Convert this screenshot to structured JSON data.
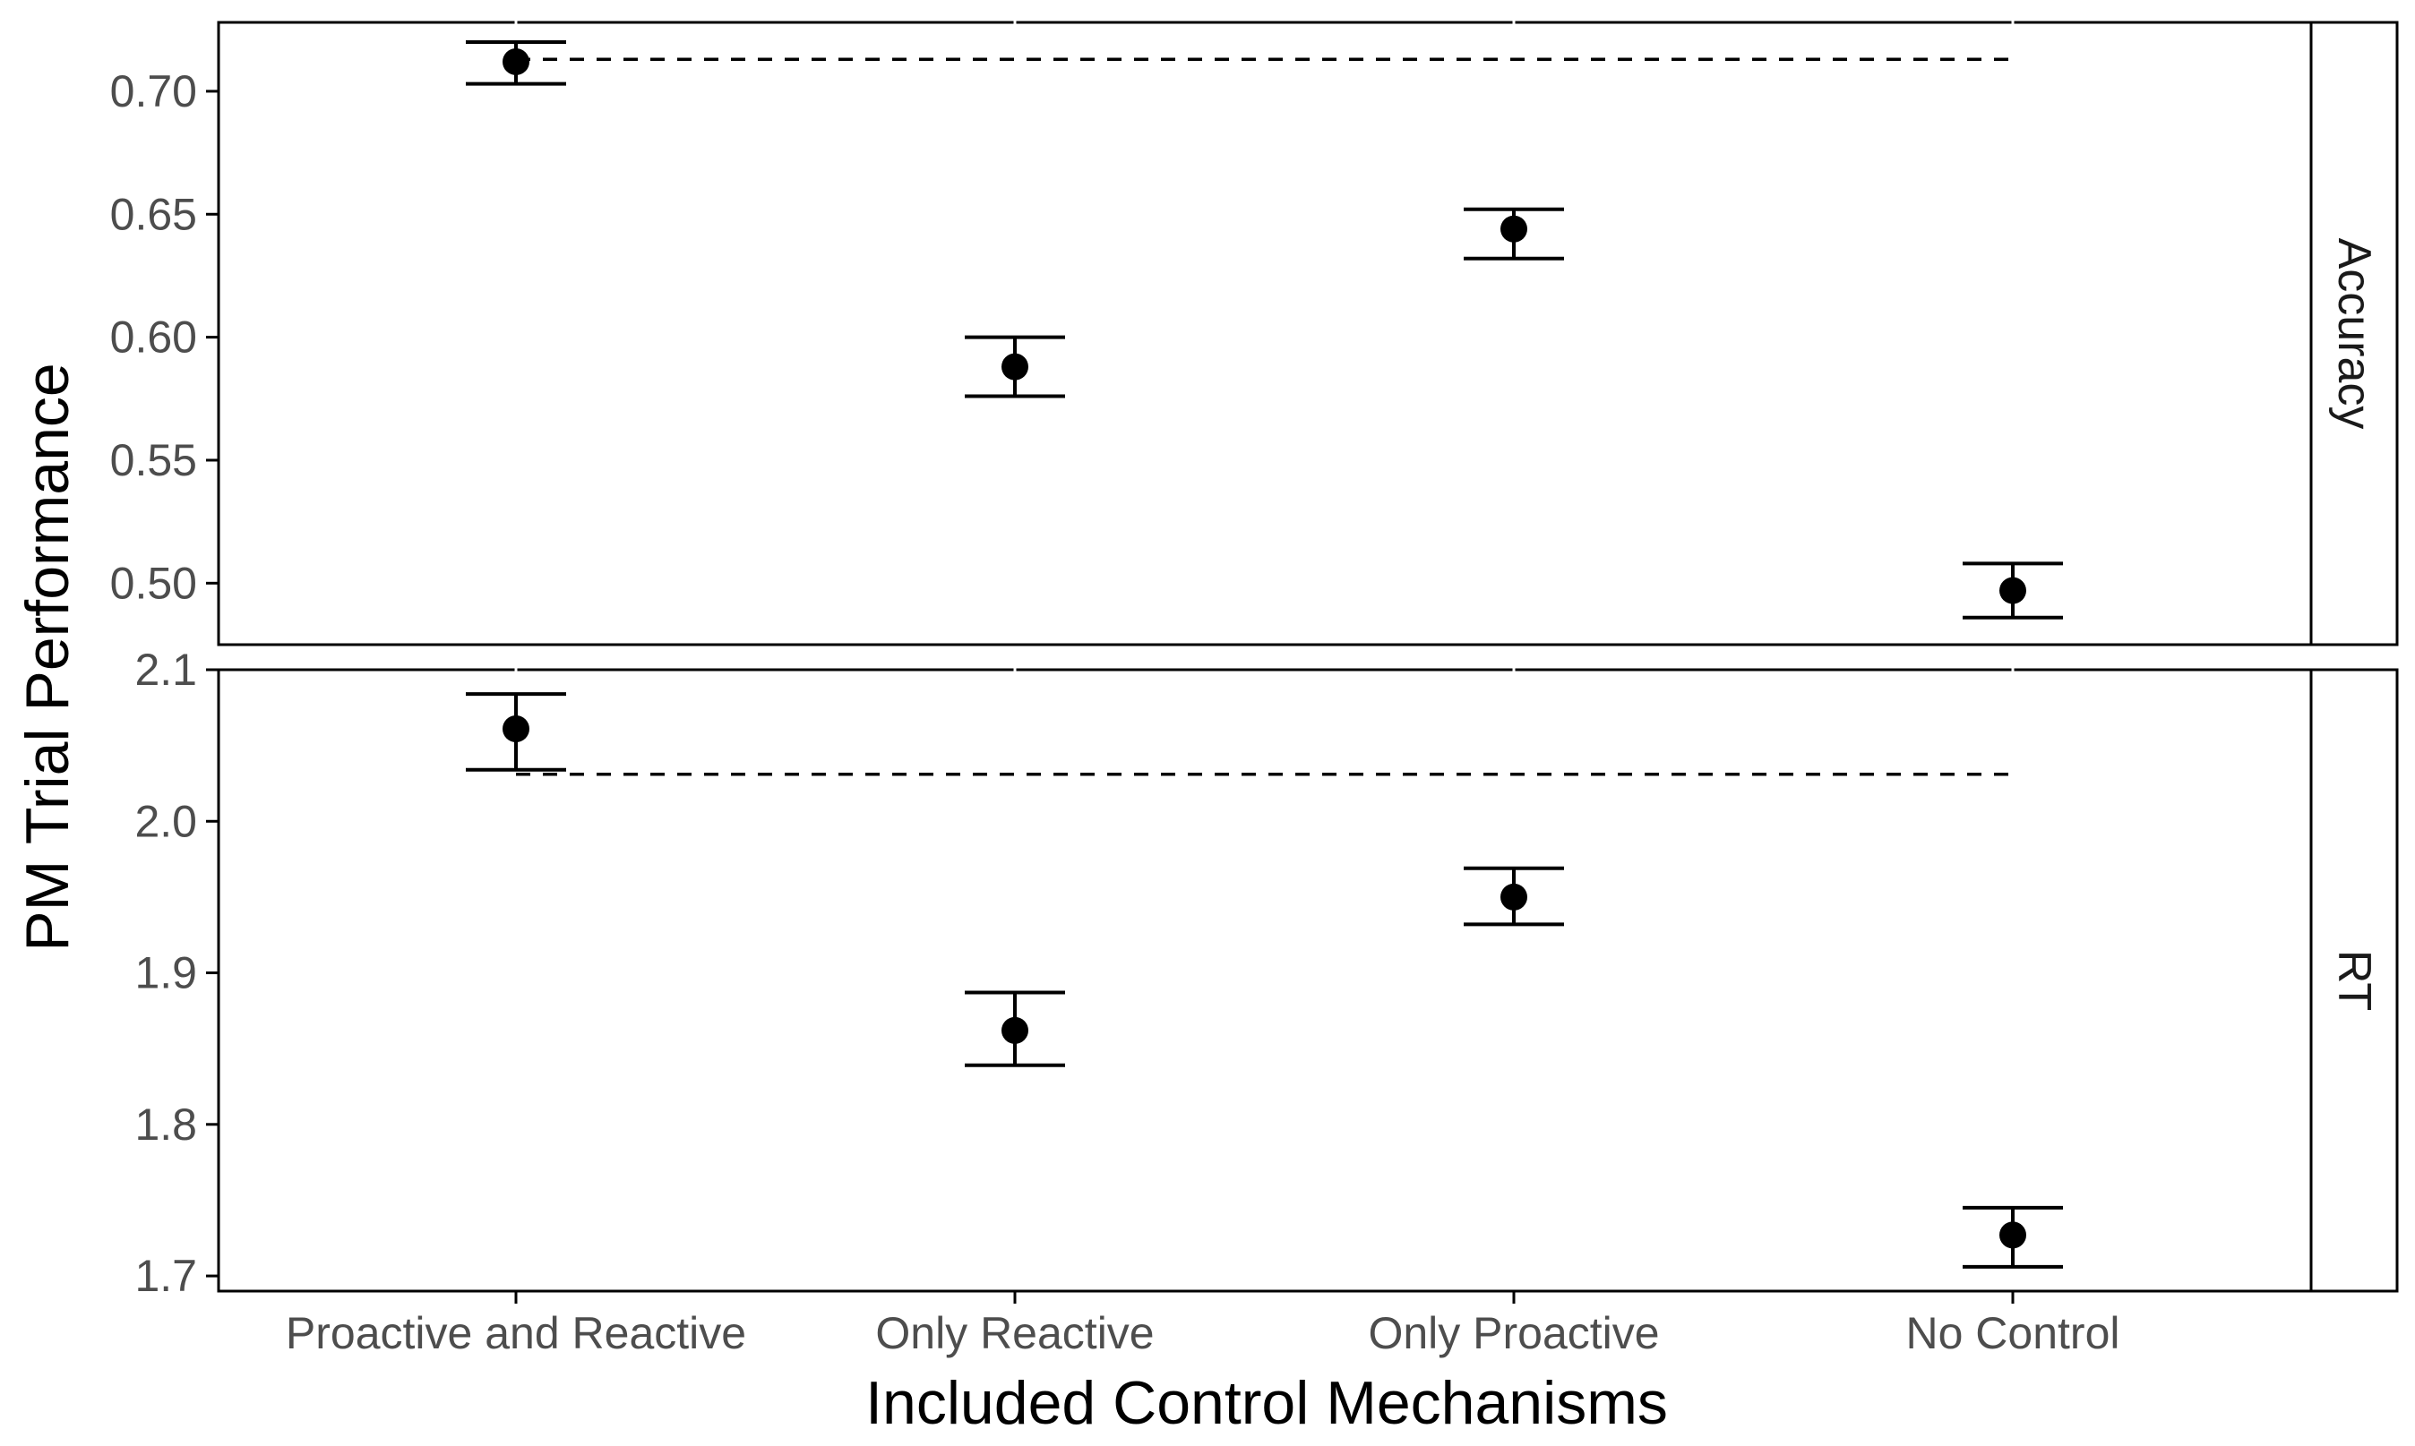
{
  "chart_data": {
    "type": "scatter",
    "subtype": "point-with-errorbars, faceted",
    "xlabel": "Included Control Mechanisms",
    "ylabel": "PM Trial Performance",
    "categories": [
      "Proactive and Reactive",
      "Only Reactive",
      "Only Proactive",
      "No Control"
    ],
    "grid": false,
    "panels": [
      {
        "strip": "Accuracy",
        "ylim": [
          0.475,
          0.728
        ],
        "yticks": [
          0.5,
          0.55,
          0.6,
          0.65,
          0.7
        ],
        "ytick_labels": [
          "0.50",
          "0.55",
          "0.60",
          "0.65",
          "0.70"
        ],
        "points": [
          {
            "category": "Proactive and Reactive",
            "mean": 0.712,
            "lower": 0.703,
            "upper": 0.72
          },
          {
            "category": "Only Reactive",
            "mean": 0.588,
            "lower": 0.576,
            "upper": 0.6
          },
          {
            "category": "Only Proactive",
            "mean": 0.644,
            "lower": 0.632,
            "upper": 0.652
          },
          {
            "category": "No Control",
            "mean": 0.497,
            "lower": 0.486,
            "upper": 0.508
          }
        ],
        "reference_line": {
          "y": 0.713,
          "from": "Proactive and Reactive",
          "to": "No Control",
          "style": "dashed"
        }
      },
      {
        "strip": "RT",
        "ylim": [
          1.69,
          2.1
        ],
        "yticks": [
          1.7,
          1.8,
          1.9,
          2.0,
          2.1
        ],
        "ytick_labels": [
          "1.7",
          "1.8",
          "1.9",
          "2.0",
          "2.1"
        ],
        "points": [
          {
            "category": "Proactive and Reactive",
            "mean": 2.061,
            "lower": 2.034,
            "upper": 2.084
          },
          {
            "category": "Only Reactive",
            "mean": 1.862,
            "lower": 1.839,
            "upper": 1.887
          },
          {
            "category": "Only Proactive",
            "mean": 1.95,
            "lower": 1.932,
            "upper": 1.969
          },
          {
            "category": "No Control",
            "mean": 1.727,
            "lower": 1.706,
            "upper": 1.745
          }
        ],
        "reference_line": {
          "y": 2.031,
          "from": "Proactive and Reactive",
          "to": "No Control",
          "style": "dashed"
        }
      }
    ]
  }
}
